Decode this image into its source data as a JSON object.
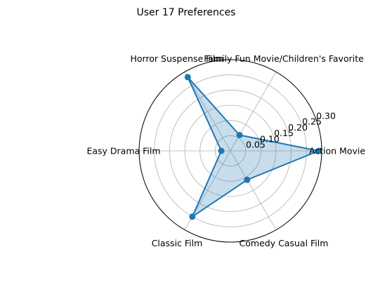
{
  "chart_data": {
    "type": "radar",
    "title": "User 17 Preferences",
    "categories": [
      "Action Movie",
      "Family Fun Movie/Children's Favorite",
      "Horror Suspense Film",
      "Easy Drama Film",
      "Classic Film",
      "Comedy Casual Film"
    ],
    "values": [
      0.29,
      0.06,
      0.28,
      0.03,
      0.25,
      0.11
    ],
    "r_ticks": [
      "0.05",
      "0.10",
      "0.15",
      "0.20",
      "0.25",
      "0.30"
    ],
    "r_tick_values": [
      0.05,
      0.1,
      0.15,
      0.2,
      0.25,
      0.3
    ],
    "rlim": [
      0,
      0.3
    ],
    "grid": true,
    "colors": {
      "line": "#1f77b4",
      "fill": "#1f77b4",
      "grid": "#b0b0b0",
      "frame": "#000000"
    }
  }
}
